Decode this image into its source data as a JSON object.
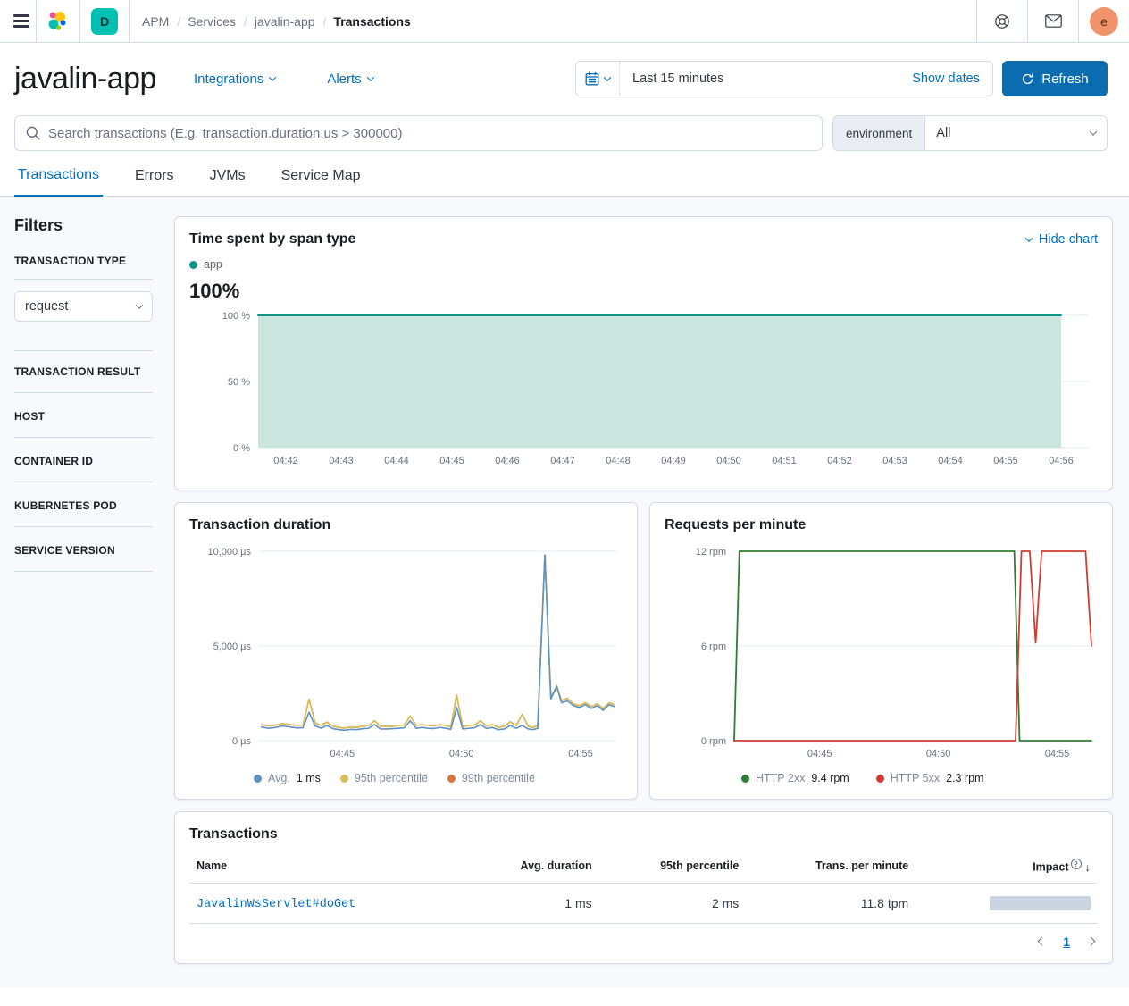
{
  "topbar": {
    "breadcrumb": [
      "APM",
      "Services",
      "javalin-app",
      "Transactions"
    ],
    "space_badge": "D",
    "avatar_initial": "e"
  },
  "header": {
    "title": "javalin-app",
    "integrations_label": "Integrations",
    "alerts_label": "Alerts",
    "time_range": "Last 15 minutes",
    "show_dates_label": "Show dates",
    "refresh_label": "Refresh"
  },
  "search": {
    "placeholder": "Search transactions (E.g. transaction.duration.us > 300000)",
    "environment_label": "environment",
    "environment_value": "All"
  },
  "tabs": [
    {
      "label": "Transactions"
    },
    {
      "label": "Errors"
    },
    {
      "label": "JVMs"
    },
    {
      "label": "Service Map"
    }
  ],
  "filters": {
    "title": "Filters",
    "transaction_type_label": "TRANSACTION TYPE",
    "transaction_type_value": "request",
    "sections": [
      "TRANSACTION RESULT",
      "HOST",
      "CONTAINER ID",
      "KUBERNETES POD",
      "SERVICE VERSION"
    ]
  },
  "span_card": {
    "title": "Time spent by span type",
    "hide_chart_label": "Hide chart",
    "legend_label": "app",
    "big_value": "100%"
  },
  "duration_card": {
    "title": "Transaction duration",
    "legend": [
      {
        "label": "Avg.",
        "value": "1 ms",
        "color": "#6092c0"
      },
      {
        "label": "95th percentile",
        "value": "",
        "color": "#d6bf57"
      },
      {
        "label": "99th percentile",
        "value": "",
        "color": "#d9753e"
      }
    ]
  },
  "rpm_card": {
    "title": "Requests per minute",
    "legend": [
      {
        "label": "HTTP 2xx",
        "value": "9.4 rpm",
        "color": "#2e7d32"
      },
      {
        "label": "HTTP 5xx",
        "value": "2.3 rpm",
        "color": "#d23b31"
      }
    ]
  },
  "transactions_card": {
    "title": "Transactions",
    "columns": {
      "name": "Name",
      "avg": "Avg. duration",
      "p95": "95th percentile",
      "tpm": "Trans. per minute",
      "impact": "Impact"
    },
    "rows": [
      {
        "name": "JavalinWsServlet#doGet",
        "avg": "1 ms",
        "p95": "2 ms",
        "tpm": "11.8 tpm",
        "impact_pct": 100
      }
    ],
    "page": "1"
  },
  "colors": {
    "primary_blue": "#0071c2",
    "button_blue": "#0c6cb0",
    "teal_badge": "#00bfb3",
    "span_line": "#0f9584",
    "span_fill": "#c9e5dd",
    "avg_blue": "#6092c0",
    "p95_yellow": "#d6bf57",
    "p99_orange": "#d9753e",
    "http2xx_green": "#2e7d32",
    "http5xx_red": "#d23b31",
    "impact_bar": "#cbd4e1",
    "border": "#d3dae6"
  },
  "chart_data": [
    {
      "id": "span-chart",
      "type": "area",
      "title": "Time spent by span type",
      "ylabel": "percent",
      "x_min": 41.5,
      "x_max": 56.5,
      "y_min": 0,
      "y_max": 100,
      "y_ticks": [
        {
          "v": 100,
          "label": "100 %"
        },
        {
          "v": 50,
          "label": "50 %"
        },
        {
          "v": 0,
          "label": "0 %"
        }
      ],
      "x_ticks": [
        {
          "v": 42,
          "label": "04:42"
        },
        {
          "v": 43,
          "label": "04:43"
        },
        {
          "v": 44,
          "label": "04:44"
        },
        {
          "v": 45,
          "label": "04:45"
        },
        {
          "v": 46,
          "label": "04:46"
        },
        {
          "v": 47,
          "label": "04:47"
        },
        {
          "v": 48,
          "label": "04:48"
        },
        {
          "v": 49,
          "label": "04:49"
        },
        {
          "v": 50,
          "label": "04:50"
        },
        {
          "v": 51,
          "label": "04:51"
        },
        {
          "v": 52,
          "label": "04:52"
        },
        {
          "v": 53,
          "label": "04:53"
        },
        {
          "v": 54,
          "label": "04:54"
        },
        {
          "v": 55,
          "label": "04:55"
        },
        {
          "v": 56,
          "label": "04:56"
        }
      ],
      "series": [
        {
          "name": "app",
          "color": "#0f9584",
          "width": 2,
          "fill": "#c9e5dd",
          "points": [
            [
              41.5,
              100
            ],
            [
              56.0,
              100
            ]
          ]
        }
      ]
    },
    {
      "id": "duration-chart",
      "type": "line",
      "title": "Transaction duration",
      "ylabel": "microseconds",
      "x_min": 41.5,
      "x_max": 56.5,
      "y_min": 0,
      "y_max": 10000,
      "y_ticks": [
        {
          "v": 10000,
          "label": "10,000 µs"
        },
        {
          "v": 5000,
          "label": "5,000 µs"
        },
        {
          "v": 0,
          "label": "0 µs"
        }
      ],
      "x_ticks": [
        {
          "v": 45,
          "label": "04:45"
        },
        {
          "v": 50,
          "label": "04:50"
        },
        {
          "v": 55,
          "label": "04:55"
        }
      ],
      "series": [
        {
          "name": "99th percentile",
          "color": "#d9753e",
          "width": 1.6,
          "points": [
            [
              41.6,
              850
            ],
            [
              41.9,
              780
            ],
            [
              42.2,
              820
            ],
            [
              42.5,
              900
            ],
            [
              42.8,
              850
            ],
            [
              43.1,
              800
            ],
            [
              43.35,
              820
            ],
            [
              43.6,
              2200
            ],
            [
              43.85,
              950
            ],
            [
              44.1,
              800
            ],
            [
              44.35,
              980
            ],
            [
              44.6,
              760
            ],
            [
              44.85,
              700
            ],
            [
              45.1,
              660
            ],
            [
              45.35,
              720
            ],
            [
              45.6,
              700
            ],
            [
              45.85,
              760
            ],
            [
              46.1,
              800
            ],
            [
              46.35,
              1050
            ],
            [
              46.6,
              760
            ],
            [
              46.85,
              750
            ],
            [
              47.1,
              760
            ],
            [
              47.35,
              800
            ],
            [
              47.6,
              820
            ],
            [
              47.85,
              1300
            ],
            [
              48.1,
              800
            ],
            [
              48.35,
              850
            ],
            [
              48.6,
              800
            ],
            [
              48.85,
              780
            ],
            [
              49.1,
              850
            ],
            [
              49.35,
              800
            ],
            [
              49.55,
              720
            ],
            [
              49.8,
              2400
            ],
            [
              50.05,
              750
            ],
            [
              50.3,
              800
            ],
            [
              50.55,
              820
            ],
            [
              50.8,
              1050
            ],
            [
              51.05,
              780
            ],
            [
              51.3,
              850
            ],
            [
              51.55,
              700
            ],
            [
              51.8,
              760
            ],
            [
              52.05,
              1000
            ],
            [
              52.3,
              800
            ],
            [
              52.55,
              1400
            ],
            [
              52.8,
              750
            ],
            [
              53.0,
              700
            ],
            [
              53.2,
              800
            ],
            [
              53.5,
              9800
            ],
            [
              53.75,
              2300
            ],
            [
              54.0,
              2900
            ],
            [
              54.2,
              2100
            ],
            [
              54.45,
              2250
            ],
            [
              54.7,
              1950
            ],
            [
              54.95,
              1850
            ],
            [
              55.2,
              2000
            ],
            [
              55.45,
              1800
            ],
            [
              55.7,
              1950
            ],
            [
              55.95,
              1700
            ],
            [
              56.2,
              2000
            ],
            [
              56.4,
              1900
            ]
          ]
        },
        {
          "name": "95th percentile",
          "color": "#d6bf57",
          "width": 1.6,
          "points": [
            [
              41.6,
              850
            ],
            [
              41.9,
              780
            ],
            [
              42.2,
              820
            ],
            [
              42.5,
              900
            ],
            [
              42.8,
              850
            ],
            [
              43.1,
              800
            ],
            [
              43.35,
              820
            ],
            [
              43.6,
              2200
            ],
            [
              43.85,
              950
            ],
            [
              44.1,
              800
            ],
            [
              44.35,
              980
            ],
            [
              44.6,
              760
            ],
            [
              44.85,
              700
            ],
            [
              45.1,
              660
            ],
            [
              45.35,
              720
            ],
            [
              45.6,
              700
            ],
            [
              45.85,
              760
            ],
            [
              46.1,
              800
            ],
            [
              46.35,
              1050
            ],
            [
              46.6,
              760
            ],
            [
              46.85,
              750
            ],
            [
              47.1,
              760
            ],
            [
              47.35,
              800
            ],
            [
              47.6,
              820
            ],
            [
              47.85,
              1300
            ],
            [
              48.1,
              800
            ],
            [
              48.35,
              850
            ],
            [
              48.6,
              800
            ],
            [
              48.85,
              780
            ],
            [
              49.1,
              850
            ],
            [
              49.35,
              800
            ],
            [
              49.55,
              720
            ],
            [
              49.8,
              2400
            ],
            [
              50.05,
              750
            ],
            [
              50.3,
              800
            ],
            [
              50.55,
              820
            ],
            [
              50.8,
              1050
            ],
            [
              51.05,
              780
            ],
            [
              51.3,
              850
            ],
            [
              51.55,
              700
            ],
            [
              51.8,
              760
            ],
            [
              52.05,
              1000
            ],
            [
              52.3,
              800
            ],
            [
              52.55,
              1400
            ],
            [
              52.8,
              750
            ],
            [
              53.0,
              700
            ],
            [
              53.2,
              800
            ],
            [
              53.5,
              9800
            ],
            [
              53.75,
              2300
            ],
            [
              54.0,
              2900
            ],
            [
              54.2,
              2100
            ],
            [
              54.45,
              2250
            ],
            [
              54.7,
              1950
            ],
            [
              54.95,
              1850
            ],
            [
              55.2,
              2000
            ],
            [
              55.45,
              1800
            ],
            [
              55.7,
              1950
            ],
            [
              55.95,
              1700
            ],
            [
              56.2,
              2000
            ],
            [
              56.4,
              1900
            ]
          ]
        },
        {
          "name": "Avg.",
          "color": "#6092c0",
          "width": 1.6,
          "points": [
            [
              41.6,
              720
            ],
            [
              41.9,
              650
            ],
            [
              42.2,
              700
            ],
            [
              42.5,
              780
            ],
            [
              42.8,
              720
            ],
            [
              43.1,
              670
            ],
            [
              43.35,
              690
            ],
            [
              43.6,
              1500
            ],
            [
              43.85,
              780
            ],
            [
              44.1,
              660
            ],
            [
              44.35,
              800
            ],
            [
              44.6,
              630
            ],
            [
              44.85,
              580
            ],
            [
              45.1,
              550
            ],
            [
              45.35,
              600
            ],
            [
              45.6,
              580
            ],
            [
              45.85,
              630
            ],
            [
              46.1,
              650
            ],
            [
              46.35,
              850
            ],
            [
              46.6,
              620
            ],
            [
              46.85,
              620
            ],
            [
              47.1,
              630
            ],
            [
              47.35,
              650
            ],
            [
              47.6,
              680
            ],
            [
              47.85,
              1050
            ],
            [
              48.1,
              650
            ],
            [
              48.35,
              700
            ],
            [
              48.6,
              650
            ],
            [
              48.85,
              640
            ],
            [
              49.1,
              700
            ],
            [
              49.35,
              650
            ],
            [
              49.55,
              600
            ],
            [
              49.8,
              1750
            ],
            [
              50.05,
              620
            ],
            [
              50.3,
              650
            ],
            [
              50.55,
              680
            ],
            [
              50.8,
              850
            ],
            [
              51.05,
              640
            ],
            [
              51.3,
              700
            ],
            [
              51.55,
              580
            ],
            [
              51.8,
              620
            ],
            [
              52.05,
              800
            ],
            [
              52.3,
              650
            ],
            [
              52.55,
              800
            ],
            [
              52.8,
              620
            ],
            [
              53.0,
              580
            ],
            [
              53.2,
              650
            ],
            [
              53.5,
              9800
            ],
            [
              53.75,
              2200
            ],
            [
              54.0,
              2850
            ],
            [
              54.2,
              2000
            ],
            [
              54.45,
              2100
            ],
            [
              54.7,
              1850
            ],
            [
              54.95,
              1750
            ],
            [
              55.2,
              1900
            ],
            [
              55.45,
              1700
            ],
            [
              55.7,
              1850
            ],
            [
              55.95,
              1600
            ],
            [
              56.2,
              1900
            ],
            [
              56.4,
              1800
            ]
          ]
        }
      ]
    },
    {
      "id": "rpm-chart",
      "type": "line",
      "title": "Requests per minute",
      "ylabel": "rpm",
      "x_min": 41.4,
      "x_max": 56.45,
      "y_min": 0,
      "y_max": 12,
      "y_ticks": [
        {
          "v": 12,
          "label": "12 rpm"
        },
        {
          "v": 6,
          "label": "6 rpm"
        },
        {
          "v": 0,
          "label": "0 rpm"
        }
      ],
      "x_ticks": [
        {
          "v": 45,
          "label": "04:45"
        },
        {
          "v": 50,
          "label": "04:50"
        },
        {
          "v": 55,
          "label": "04:55"
        }
      ],
      "series": [
        {
          "name": "HTTP 2xx",
          "color": "#2e7d32",
          "width": 1.8,
          "points": [
            [
              41.4,
              0
            ],
            [
              41.62,
              12
            ],
            [
              53.2,
              12
            ],
            [
              53.42,
              0
            ],
            [
              56.45,
              0
            ]
          ]
        },
        {
          "name": "HTTP 5xx",
          "color": "#d23b31",
          "width": 1.8,
          "points": [
            [
              41.4,
              0
            ],
            [
              53.25,
              0
            ],
            [
              53.5,
              12
            ],
            [
              53.85,
              12
            ],
            [
              54.1,
              6.2
            ],
            [
              54.35,
              12
            ],
            [
              56.2,
              12
            ],
            [
              56.45,
              6
            ]
          ]
        }
      ]
    }
  ]
}
